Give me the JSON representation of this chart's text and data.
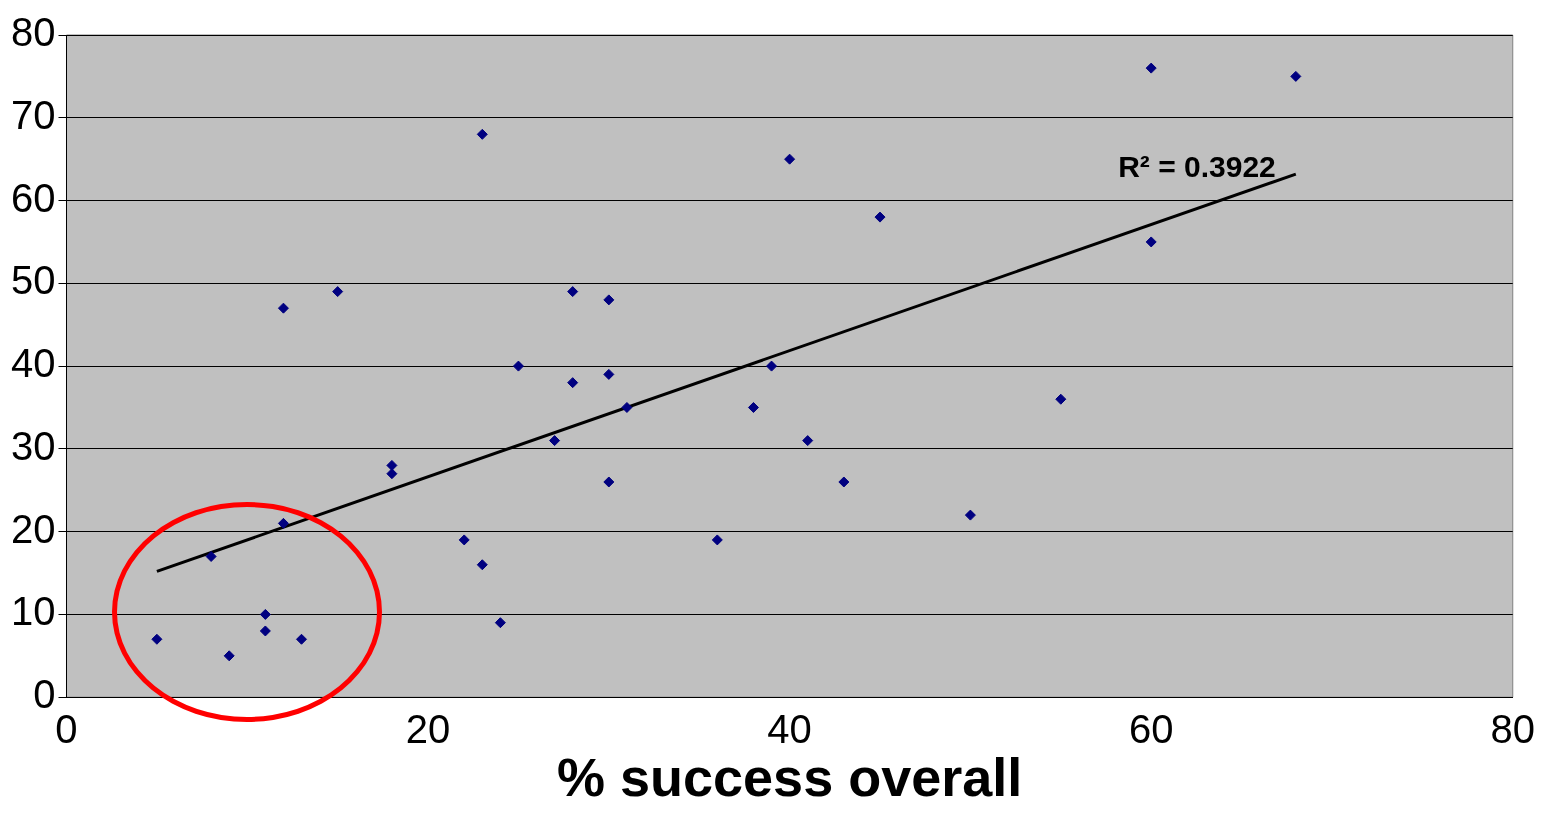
{
  "chart_data": {
    "type": "scatter",
    "xlabel": "% success overall",
    "series": [
      {
        "type": "scatter",
        "marker": "diamond",
        "color": "#000080",
        "x": [
          5,
          8,
          9,
          11,
          11,
          13,
          12,
          12,
          15,
          18,
          18,
          22,
          23,
          24,
          23,
          25,
          27,
          28,
          28,
          30,
          30,
          30,
          31,
          36,
          38,
          39,
          40,
          41,
          43,
          45,
          50,
          55,
          60,
          60,
          68
        ],
        "values": [
          7,
          17,
          5,
          10,
          8,
          7,
          21,
          47,
          49,
          28,
          27,
          19,
          16,
          9,
          68,
          40,
          31,
          49,
          38,
          48,
          39,
          26,
          35,
          19,
          35,
          40,
          65,
          31,
          26,
          58,
          22,
          36,
          76,
          55,
          75
        ]
      },
      {
        "type": "line",
        "color": "#000000",
        "x": [
          5,
          68
        ],
        "values": [
          15.2,
          63.2
        ]
      }
    ],
    "annotations": [
      "R² = 0.3922"
    ],
    "xlim": [
      0,
      80
    ],
    "xticks": [
      0,
      20,
      40,
      60,
      80
    ],
    "ylim": [
      0,
      80
    ],
    "yticks": [
      0,
      10,
      20,
      30,
      40,
      50,
      60,
      70,
      80
    ],
    "grid": "y",
    "legend": false
  }
}
